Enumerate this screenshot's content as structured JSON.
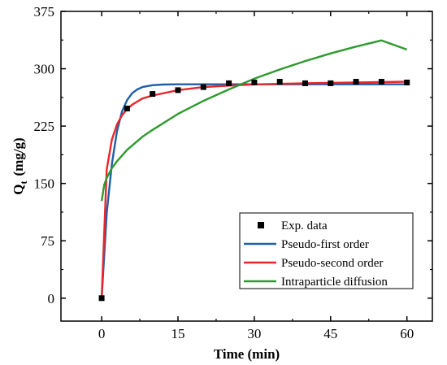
{
  "chart_data": {
    "type": "scatter",
    "xlabel": "Time (min)",
    "ylabel_main": "Q",
    "ylabel_sub": "t",
    "ylabel_unit": "(mg/g)",
    "xlim": [
      -8,
      65
    ],
    "ylim": [
      -30,
      375
    ],
    "x_ticks": [
      0,
      15,
      30,
      45,
      60
    ],
    "y_ticks": [
      0,
      75,
      150,
      225,
      300,
      375
    ],
    "grid": false,
    "legend_position": "bottom-right",
    "series": [
      {
        "name": "Exp. data",
        "kind": "markers",
        "color": "#000000",
        "x": [
          0,
          5,
          10,
          15,
          20,
          25,
          30,
          35,
          40,
          45,
          50,
          55,
          60
        ],
        "y": [
          0,
          248,
          267,
          272,
          276,
          281,
          282,
          283,
          281,
          281,
          283,
          283,
          282
        ]
      },
      {
        "name": "Pseudo-first order",
        "kind": "line",
        "color": "#1f5fa8",
        "x": [
          0,
          1,
          2,
          3,
          4,
          5,
          6,
          7,
          8,
          10,
          12,
          15,
          20,
          25,
          30,
          40,
          50,
          60
        ],
        "y": [
          0,
          111,
          175,
          218,
          244,
          259,
          268,
          273,
          276,
          278.5,
          279.3,
          279.6,
          279.7,
          279.7,
          279.7,
          279.7,
          279.7,
          279.7
        ]
      },
      {
        "name": "Pseudo-second order",
        "kind": "line",
        "color": "#e8262c",
        "x": [
          0,
          1,
          2,
          3,
          4,
          5,
          6,
          8,
          10,
          15,
          20,
          25,
          30,
          40,
          50,
          60
        ],
        "y": [
          0,
          168,
          207,
          227,
          239,
          247,
          253,
          261,
          265,
          272,
          276,
          278,
          279.5,
          281,
          282,
          283
        ]
      },
      {
        "name": "Intraparticle diffusion",
        "kind": "line",
        "color": "#2e9a2e",
        "x": [
          0,
          0.5,
          1,
          2,
          3,
          5,
          8,
          10,
          15,
          20,
          25,
          30,
          35,
          40,
          45,
          50,
          55,
          60
        ],
        "y": [
          127,
          148,
          157,
          170,
          179,
          194,
          211,
          220,
          241,
          258,
          273,
          287,
          299,
          310,
          320,
          329,
          337,
          325
        ]
      }
    ]
  }
}
